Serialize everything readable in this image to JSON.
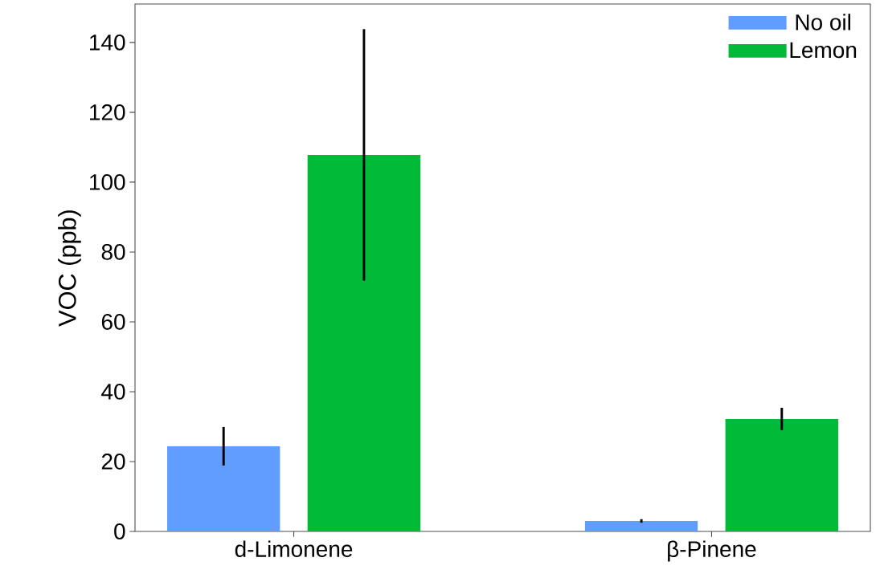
{
  "chart_data": {
    "type": "bar",
    "ylabel": "VOC (ppb)",
    "categories": [
      "d-Limonene",
      "β-Pinene"
    ],
    "series": [
      {
        "name": "No oil",
        "color": "#619cff",
        "values": [
          24.4,
          3.0
        ],
        "errors": [
          5.5,
          0.5
        ]
      },
      {
        "name": "Lemon",
        "color": "#00ba38",
        "values": [
          107.8,
          32.2
        ],
        "errors": [
          36,
          3.2
        ]
      }
    ],
    "ylim": [
      0,
      151
    ],
    "yticks": [
      0,
      20,
      40,
      60,
      80,
      100,
      120,
      140
    ],
    "legend": "top right",
    "grid": false
  }
}
